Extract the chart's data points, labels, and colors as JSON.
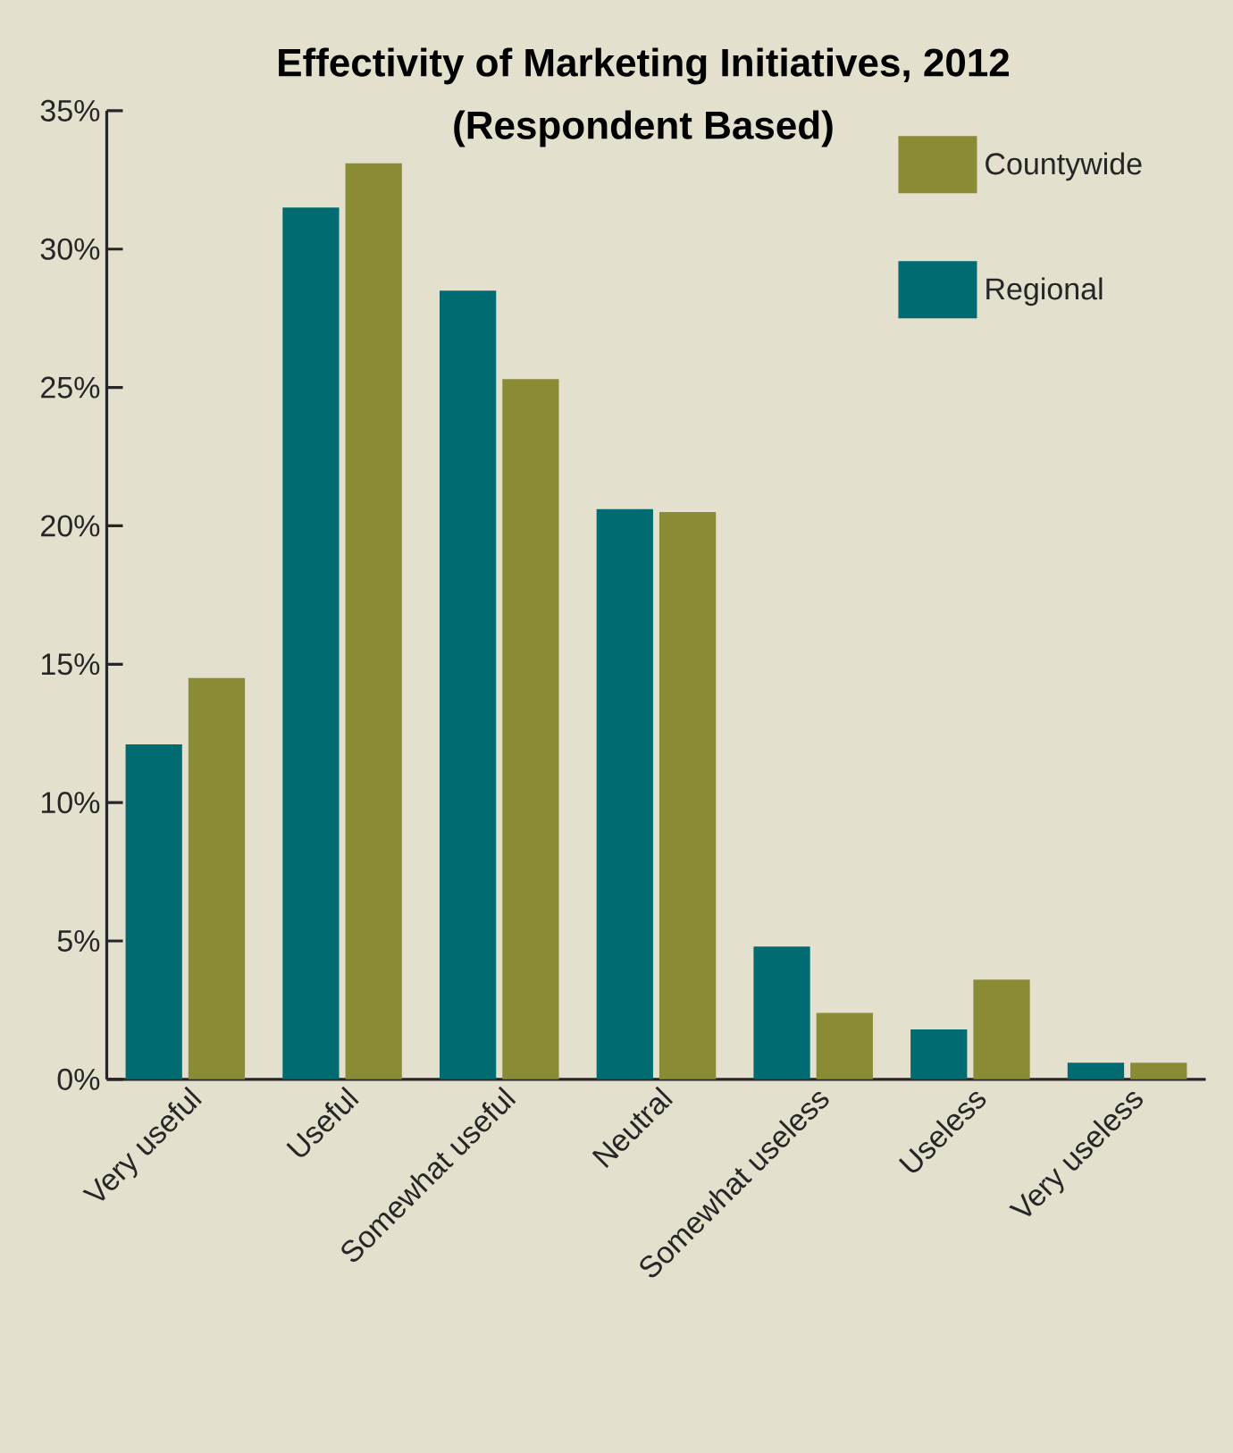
{
  "chart_data": {
    "type": "bar",
    "title": "Effectivity of Marketing Initiatives, 2012",
    "subtitle": "(Respondent Based)",
    "categories": [
      "Very useful",
      "Useful",
      "Somewhat useful",
      "Neutral",
      "Somewhat useless",
      "Useless",
      "Very useless"
    ],
    "series": [
      {
        "name": "Regional",
        "color": "#006b70",
        "values": [
          12.1,
          31.5,
          28.5,
          20.6,
          4.8,
          1.8,
          0.6
        ]
      },
      {
        "name": "Countywide",
        "color": "#8b8b36",
        "values": [
          14.5,
          33.1,
          25.3,
          20.5,
          2.4,
          3.6,
          0.6
        ]
      }
    ],
    "ylim": [
      0,
      35
    ],
    "yticks": [
      {
        "value": 0,
        "label": "0%"
      },
      {
        "value": 5,
        "label": "5%"
      },
      {
        "value": 10,
        "label": "10%"
      },
      {
        "value": 15,
        "label": "15%"
      },
      {
        "value": 20,
        "label": "20%"
      },
      {
        "value": 25,
        "label": "25%"
      },
      {
        "value": 30,
        "label": "30%"
      },
      {
        "value": 35,
        "label": "35%"
      }
    ],
    "legend": "top right"
  }
}
